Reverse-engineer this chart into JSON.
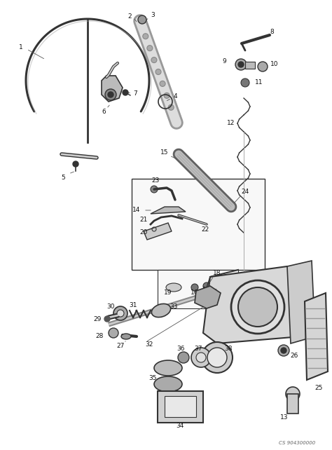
{
  "bg_color": "#f5f5f5",
  "line_color": "#333333",
  "dark_color": "#222222",
  "gray_color": "#888888",
  "light_gray": "#cccccc",
  "watermark": "CS 904300000",
  "label_fontsize": 6.5,
  "fig_width": 4.74,
  "fig_height": 6.42,
  "dpi": 100
}
